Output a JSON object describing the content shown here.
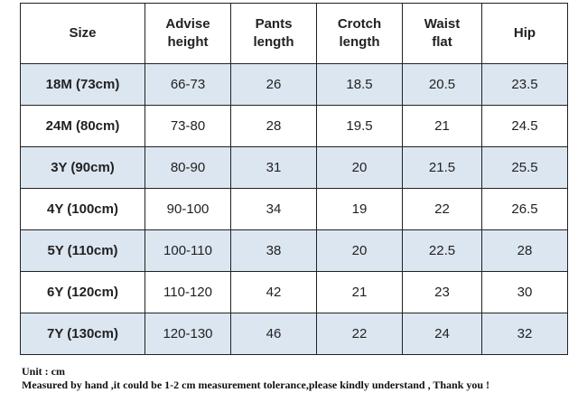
{
  "table": {
    "header": [
      "Size",
      "Advise\nheight",
      "Pants\nlength",
      "Crotch\nlength",
      "Waist\nflat",
      "Hip"
    ],
    "rows": [
      [
        "18M (73cm)",
        "66-73",
        "26",
        "18.5",
        "20.5",
        "23.5"
      ],
      [
        "24M (80cm)",
        "73-80",
        "28",
        "19.5",
        "21",
        "24.5"
      ],
      [
        "3Y (90cm)",
        "80-90",
        "31",
        "20",
        "21.5",
        "25.5"
      ],
      [
        "4Y (100cm)",
        "90-100",
        "34",
        "19",
        "22",
        "26.5"
      ],
      [
        "5Y (110cm)",
        "100-110",
        "38",
        "20",
        "22.5",
        "28"
      ],
      [
        "6Y (120cm)",
        "110-120",
        "42",
        "21",
        "23",
        "30"
      ],
      [
        "7Y (130cm)",
        "120-130",
        "46",
        "22",
        "24",
        "32"
      ]
    ]
  },
  "notes": [
    "Unit : cm",
    "Measured by hand ,it could be 1-2 cm measurement tolerance,please kindly understand , Thank you !"
  ]
}
